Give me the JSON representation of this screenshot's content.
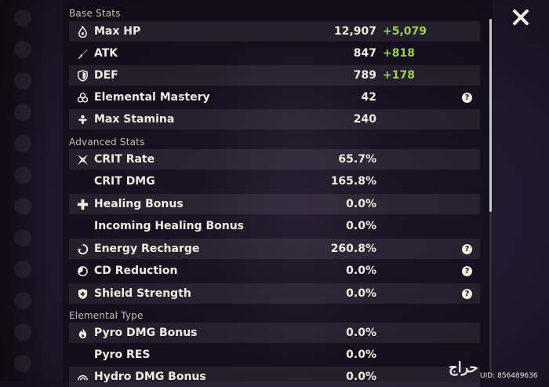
{
  "sections": {
    "base": "Base Stats",
    "advanced": "Advanced Stats",
    "elemental": "Elemental Type"
  },
  "base_stats": [
    {
      "label": "Max HP",
      "value": "12,907",
      "bonus": "+5,079",
      "icon": "hp-droplet-icon"
    },
    {
      "label": "ATK",
      "value": "847",
      "bonus": "+818",
      "icon": "sword-icon"
    },
    {
      "label": "DEF",
      "value": "789",
      "bonus": "+178",
      "icon": "shield-icon"
    },
    {
      "label": "Elemental Mastery",
      "value": "42",
      "icon": "elemental-mastery-icon",
      "help": "?"
    },
    {
      "label": "Max Stamina",
      "value": "240",
      "icon": "stamina-icon"
    }
  ],
  "advanced_stats": [
    {
      "label": "CRIT Rate",
      "value": "65.7%",
      "icon": "crit-icon"
    },
    {
      "label": "CRIT DMG",
      "value": "165.8%"
    },
    {
      "label": "Healing Bonus",
      "value": "0.0%",
      "icon": "healing-cross-icon"
    },
    {
      "label": "Incoming Healing Bonus",
      "value": "0.0%"
    },
    {
      "label": "Energy Recharge",
      "value": "260.8%",
      "icon": "energy-recharge-icon",
      "help": "?"
    },
    {
      "label": "CD Reduction",
      "value": "0.0%",
      "icon": "cd-reduction-icon",
      "help": "?"
    },
    {
      "label": "Shield Strength",
      "value": "0.0%",
      "icon": "shield-strength-icon",
      "help": "?"
    }
  ],
  "elemental_stats": [
    {
      "label": "Pyro DMG Bonus",
      "value": "0.0%",
      "icon": "pyro-flame-icon"
    },
    {
      "label": "Pyro RES",
      "value": "0.0%"
    },
    {
      "label": "Hydro DMG Bonus",
      "value": "0.0%",
      "icon": "hydro-icon"
    }
  ],
  "watermark": "حراج",
  "uid": "UID: 856489636",
  "colors": {
    "bonus": "#9bd14b",
    "text": "#f1ebe0",
    "section": "#c9bfae"
  }
}
